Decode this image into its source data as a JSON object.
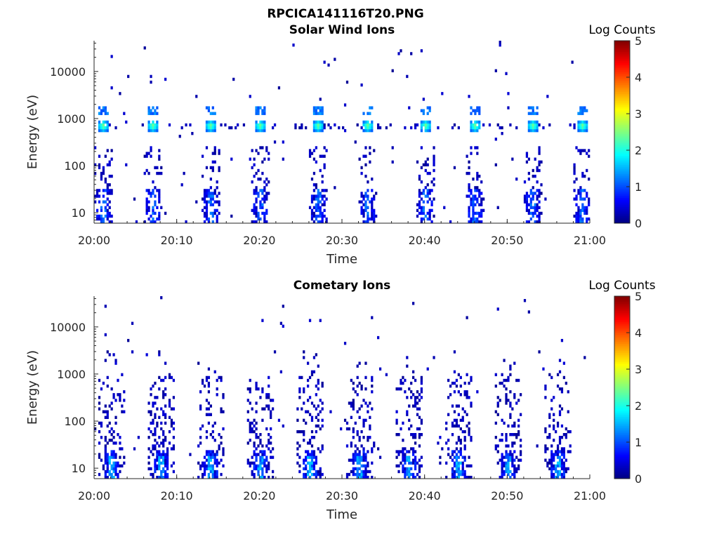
{
  "figure": {
    "title": "RPCICA141116T20.PNG"
  },
  "chart_data": [
    {
      "type": "heatmap",
      "title": "Solar Wind Ions",
      "xlabel": "Time",
      "ylabel": "Energy (eV)",
      "xlim": [
        "20:00",
        "21:00"
      ],
      "xticks": [
        "20:00",
        "20:10",
        "20:20",
        "20:30",
        "20:40",
        "20:50",
        "21:00"
      ],
      "yscale": "log",
      "ylim": [
        6,
        45000
      ],
      "yticks": [
        "10",
        "100",
        "1000",
        "10000"
      ],
      "colorbar": {
        "label": "Log Counts",
        "range": [
          0,
          5
        ],
        "ticks": [
          "0",
          "1",
          "2",
          "3",
          "4",
          "5"
        ],
        "colormap": "jet"
      },
      "pattern": {
        "proton_peak_energy": 700,
        "alpha_peak_energy": 1500,
        "peak_log_counts": 2.6,
        "burst_times": [
          "20:01",
          "20:07",
          "20:14",
          "20:20",
          "20:27",
          "20:33",
          "20:40",
          "20:46",
          "20:53",
          "20:59"
        ]
      }
    },
    {
      "type": "heatmap",
      "title": "Cometary Ions",
      "xlabel": "Time",
      "ylabel": "Energy (eV)",
      "xlim": [
        "20:00",
        "21:00"
      ],
      "xticks": [
        "20:00",
        "20:10",
        "20:20",
        "20:30",
        "20:40",
        "20:50",
        "21:00"
      ],
      "yscale": "log",
      "ylim": [
        6,
        45000
      ],
      "yticks": [
        "10",
        "100",
        "1000",
        "10000"
      ],
      "colorbar": {
        "label": "Log Counts",
        "range": [
          0,
          5
        ],
        "ticks": [
          "0",
          "1",
          "2",
          "3",
          "4",
          "5"
        ],
        "colormap": "jet"
      },
      "pattern": {
        "low_energy_peak": 10,
        "peak_log_counts": 1.8,
        "burst_times": [
          "20:02",
          "20:08",
          "20:14",
          "20:20",
          "20:26",
          "20:32",
          "20:38",
          "20:44",
          "20:50",
          "20:56"
        ]
      }
    }
  ]
}
